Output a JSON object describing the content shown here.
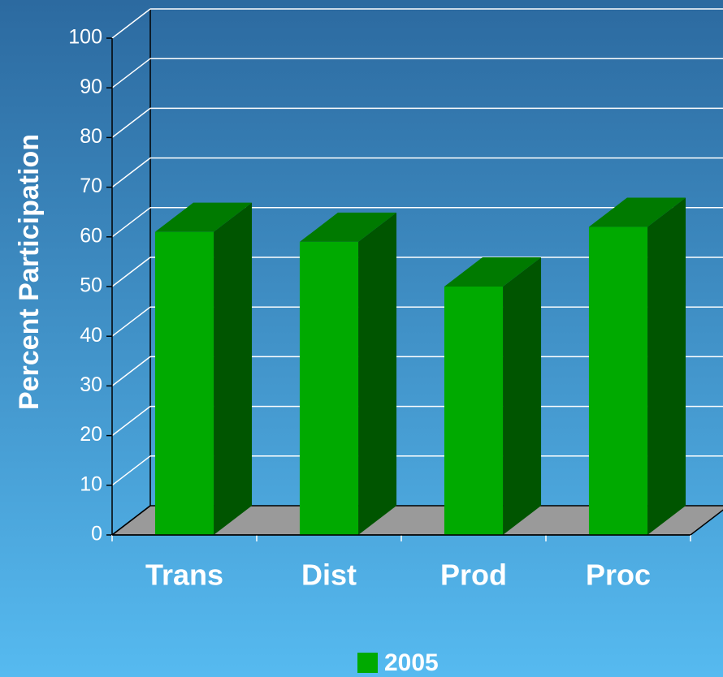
{
  "chart_data": {
    "type": "bar3d",
    "axis_label": "Percent Participation",
    "categories": [
      "Trans",
      "Dist",
      "Prod",
      "Proc"
    ],
    "series": [
      {
        "name": "2005",
        "color": "#00aa00",
        "values": [
          61,
          59,
          50,
          62
        ]
      }
    ],
    "ylim": [
      0,
      100
    ],
    "yticks": [
      0,
      10,
      20,
      30,
      40,
      50,
      60,
      70,
      80,
      90,
      100
    ],
    "grid": true
  }
}
